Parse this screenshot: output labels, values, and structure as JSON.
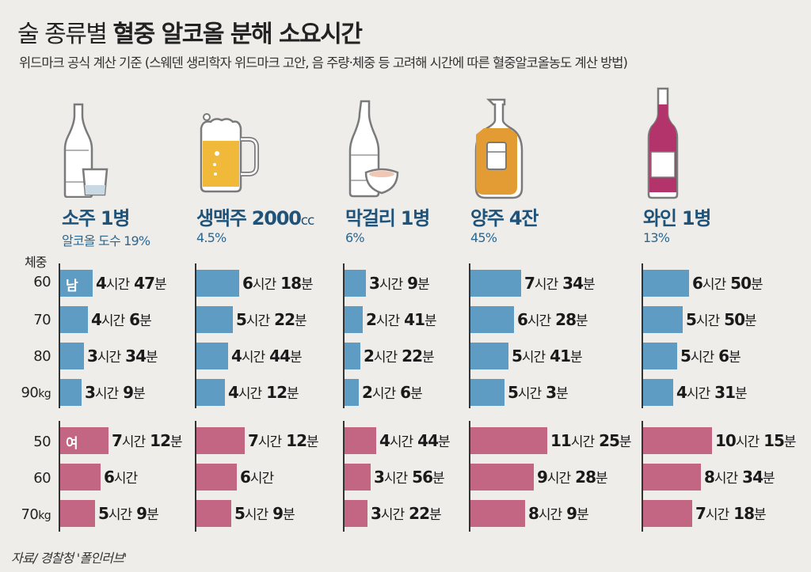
{
  "header": {
    "title_light": "술 종류별",
    "title_bold": "혈중 알코올 분해 소요시간",
    "subtitle": "위드마크 공식 계산 기준 (스웨덴 생리학자 위드마크 고안, 음 주량·체중 등 고려해 시간에 따른 혈중알코올농도 계산 방법)"
  },
  "weight_header": "체중",
  "gender_tags": {
    "male": "남",
    "female": "여"
  },
  "unit_hour": "시간",
  "unit_min": "분",
  "male_weights": [
    "60",
    "70",
    "80",
    "90"
  ],
  "female_weights": [
    "50",
    "60",
    "70"
  ],
  "weight_unit": "kg",
  "drinks": [
    {
      "name": "소주 1병",
      "abv": "알코올 도수 19%",
      "icon": "soju-bottle-icon",
      "male": [
        "4시간 47분",
        "4시간 6분",
        "3시간 34분",
        "3시간 9분"
      ],
      "female": [
        "7시간 12분",
        "6시간",
        "5시간 9분"
      ]
    },
    {
      "name": "생맥주 2000",
      "name_unit": "cc",
      "abv": "4.5%",
      "icon": "beer-mug-icon",
      "male": [
        "6시간 18분",
        "5시간 22분",
        "4시간 44분",
        "4시간 12분"
      ],
      "female": [
        "7시간 12분",
        "6시간",
        "5시간 9분"
      ]
    },
    {
      "name": "막걸리 1병",
      "abv": "6%",
      "icon": "makgeolli-bottle-icon",
      "male": [
        "3시간 9분",
        "2시간 41분",
        "2시간 22분",
        "2시간 6분"
      ],
      "female": [
        "4시간 44분",
        "3시간 56분",
        "3시간 22분"
      ]
    },
    {
      "name": "양주 4잔",
      "abv": "45%",
      "icon": "whisky-bottle-icon",
      "male": [
        "7시간 34분",
        "6시간 28분",
        "5시간 41분",
        "5시간 3분"
      ],
      "female": [
        "11시간 25분",
        "9시간 28분",
        "8시간 9분"
      ]
    },
    {
      "name": "와인 1병",
      "abv": "13%",
      "icon": "wine-bottle-icon",
      "male": [
        "6시간 50분",
        "5시간 50분",
        "5시간 6분",
        "4시간 31분"
      ],
      "female": [
        "10시간 15분",
        "8시간 34분",
        "7시간 18분"
      ]
    }
  ],
  "source": "자료/ 경찰청 '폴인러브'",
  "colors": {
    "male_bar": "#5f9cc3",
    "female_bar": "#c26683",
    "drink_name": "#1f5379",
    "background": "#efedea"
  },
  "chart_data": {
    "type": "bar",
    "orientation": "horizontal",
    "title": "술 종류별 혈중 알코올 분해 소요시간",
    "subtitle": "위드마크 공식 계산 기준",
    "unit": "minutes",
    "groups": [
      "소주 1병 (19%)",
      "생맥주 2000cc (4.5%)",
      "막걸리 1병 (6%)",
      "양주 4잔 (45%)",
      "와인 1병 (13%)"
    ],
    "series": [
      {
        "name": "남 60kg",
        "values": [
          287,
          378,
          189,
          454,
          410
        ]
      },
      {
        "name": "남 70kg",
        "values": [
          246,
          322,
          161,
          388,
          350
        ]
      },
      {
        "name": "남 80kg",
        "values": [
          214,
          284,
          142,
          341,
          306
        ]
      },
      {
        "name": "남 90kg",
        "values": [
          189,
          252,
          126,
          303,
          271
        ]
      },
      {
        "name": "여 50kg",
        "values": [
          432,
          432,
          284,
          685,
          615
        ]
      },
      {
        "name": "여 60kg",
        "values": [
          360,
          360,
          236,
          568,
          514
        ]
      },
      {
        "name": "여 70kg",
        "values": [
          309,
          309,
          202,
          489,
          438
        ]
      }
    ],
    "source": "경찰청 '폴인러브'"
  }
}
